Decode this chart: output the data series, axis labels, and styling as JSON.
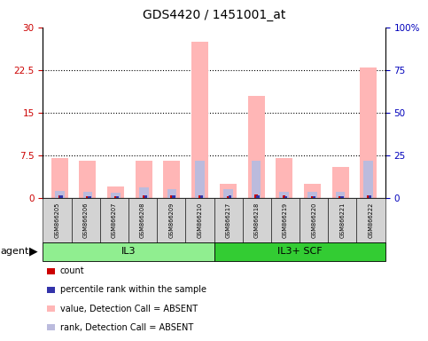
{
  "title": "GDS4420 / 1451001_at",
  "samples": [
    "GSM866205",
    "GSM866206",
    "GSM866207",
    "GSM866208",
    "GSM866209",
    "GSM866210",
    "GSM866217",
    "GSM866218",
    "GSM866219",
    "GSM866220",
    "GSM866221",
    "GSM866222"
  ],
  "groups": [
    {
      "label": "IL3",
      "start": 0,
      "end": 6,
      "color": "#90EE90"
    },
    {
      "label": "IL3+ SCF",
      "start": 6,
      "end": 12,
      "color": "#33CC33"
    }
  ],
  "pink_values": [
    7.0,
    6.5,
    2.0,
    6.5,
    6.5,
    27.5,
    2.5,
    18.0,
    7.0,
    2.5,
    5.5,
    23.0
  ],
  "blue_values": [
    1.2,
    1.1,
    0.9,
    1.8,
    1.5,
    6.5,
    1.5,
    6.5,
    1.1,
    1.1,
    1.1,
    6.5
  ],
  "red_values": [
    0.5,
    0.3,
    0.2,
    0.4,
    0.4,
    0.5,
    0.3,
    0.6,
    0.4,
    0.3,
    0.3,
    0.5
  ],
  "db_values": [
    0.4,
    0.3,
    0.3,
    0.5,
    0.4,
    0.5,
    0.4,
    0.5,
    0.3,
    0.3,
    0.3,
    0.5
  ],
  "ylim_left": [
    0,
    30
  ],
  "ylim_right": [
    0,
    100
  ],
  "yticks_left": [
    0,
    7.5,
    15,
    22.5,
    30
  ],
  "ytick_labels_left": [
    "0",
    "7.5",
    "15",
    "22.5",
    "30"
  ],
  "yticks_right": [
    0,
    25,
    50,
    75,
    100
  ],
  "ytick_labels_right": [
    "0",
    "25",
    "50",
    "75",
    "100%"
  ],
  "pink_color": "#FFB6B6",
  "blue_color": "#BBBBDD",
  "red_color": "#CC0000",
  "db_color": "#3333AA",
  "left_axis_color": "#CC0000",
  "right_axis_color": "#0000BB",
  "legend_labels": [
    "count",
    "percentile rank within the sample",
    "value, Detection Call = ABSENT",
    "rank, Detection Call = ABSENT"
  ]
}
